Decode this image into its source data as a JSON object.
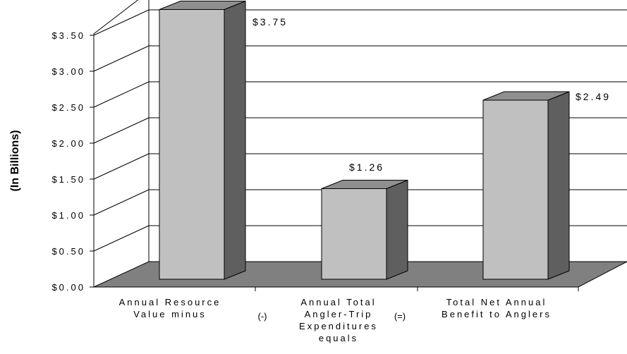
{
  "chart_data": {
    "type": "bar",
    "categories": [
      [
        "Annual Resource",
        "Value minus"
      ],
      [
        "Annual Total",
        "Angler-Trip",
        "Expenditures",
        "equals"
      ],
      [
        "Total Net Annual",
        "Benefit to Anglers"
      ]
    ],
    "values": [
      3.75,
      1.26,
      2.49
    ],
    "data_labels": [
      "$3.75",
      "$1.26",
      "$2.49"
    ],
    "operators": [
      "(-)",
      "(=)"
    ],
    "ylabel": "(In Billions)",
    "yticks": [
      "$0.00",
      "$0.50",
      "$1.00",
      "$1.50",
      "$2.00",
      "$2.50",
      "$3.00",
      "$3.50"
    ],
    "ylim": [
      0,
      3.5
    ],
    "grid": true,
    "style": "3d-column",
    "colors": {
      "front": "#c0c0c0",
      "side": "#5f5f5f",
      "top": "#8f8f8f",
      "floor": "#808080"
    }
  }
}
